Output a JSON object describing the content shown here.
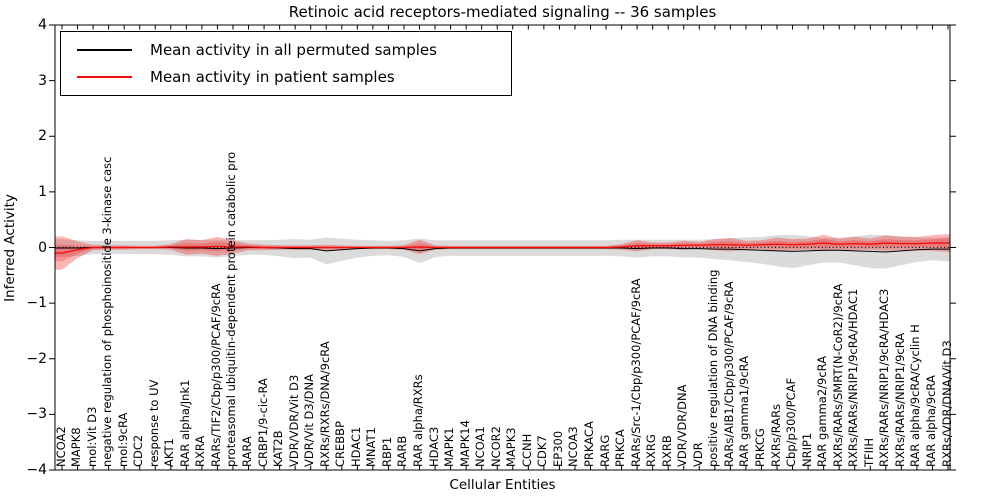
{
  "title": "Retinoic acid receptors-mediated signaling -- 36 samples",
  "axes": {
    "ylabel": "Inferred Activity",
    "xlabel": "Cellular Entities",
    "ytick_labels": [
      "4",
      "3",
      "2",
      "1",
      "0",
      "−1",
      "−2",
      "−3",
      "−4"
    ],
    "ytick_values": [
      4,
      3,
      2,
      1,
      0,
      -1,
      -2,
      -3,
      -4
    ],
    "ylim": [
      -4,
      4
    ]
  },
  "legend": {
    "items": [
      {
        "label": "Mean activity in all permuted samples",
        "color": "#000000"
      },
      {
        "label": "Mean activity in patient samples",
        "color": "#f50d0d"
      }
    ]
  },
  "colors": {
    "spine": "#000000",
    "permuted_line": "#000000",
    "patient_line": "#f50d0d",
    "permuted_band": "#999999",
    "patient_band": "#f50d0d",
    "zero_line": "#000000"
  },
  "chart_data": {
    "type": "line",
    "title": "Retinoic acid receptors-mediated signaling -- 36 samples",
    "xlabel": "Cellular Entities",
    "ylabel": "Inferred Activity",
    "ylim": [
      -4,
      4
    ],
    "grid": false,
    "legend_position": "upper left",
    "zero_reference_line": true,
    "categories": [
      "NCOA2",
      "MAPK8",
      "mol:Vit D3",
      "negative regulation of phosphoinositide 3-kinase casc",
      "mol:9cRA",
      "CDC2",
      "response to UV",
      "AKT1",
      "RAR alpha/Jnk1",
      "RXRA",
      "RARs/TIF2/Cbp/p300/PCAF/9cRA",
      "proteasomal ubiquitin-dependent protein catabolic pro",
      "RARA",
      "CRBP1/9-cic-RA",
      "KAT2B",
      "VDR/VDR/Vit D3",
      "VDR/Vit D3/DNA",
      "RXRs/RXRs/DNA/9cRA",
      "CREBBP",
      "HDAC1",
      "MNAT1",
      "RBP1",
      "RARB",
      "RAR alpha/RXRs",
      "HDAC3",
      "MAPK1",
      "MAPK14",
      "NCOA1",
      "NCOR2",
      "MAPK3",
      "CCNH",
      "CDK7",
      "EP300",
      "NCOA3",
      "PRKACA",
      "RARG",
      "PRKCA",
      "RARs/Src-1/Cbp/p300/PCAF/9cRA",
      "RXRG",
      "RXRB",
      "VDR/VDR/DNA",
      "VDR",
      "positive regulation of DNA binding",
      "RARs/AIB1/Cbp/p300/PCAF/9cRA",
      "RAR gamma1/9cRA",
      "PRKCG",
      "RXRs/RARs",
      "Cbp/p300/PCAF",
      "NRIP1",
      "RAR gamma2/9cRA",
      "RXRs/RARs/SMRT(N-CoR2)/9cRA",
      "RXRs/RARs/NRIP1/9cRA/HDAC1",
      "TFIIH",
      "RXRs/RARs/NRIP1/9cRA/HDAC3",
      "RXRs/RARs/NRIP1/9cRA",
      "RAR alpha/9cRA/Cyclin H",
      "RAR alpha/9cRA",
      "RXRs/VDR/DNA/Vit D3"
    ],
    "series": [
      {
        "name": "Mean activity in all permuted samples",
        "values": [
          -0.01,
          -0.01,
          0,
          0,
          0,
          0,
          0,
          0,
          -0.01,
          -0.01,
          -0.02,
          -0.01,
          0,
          0,
          -0.01,
          -0.02,
          -0.02,
          -0.06,
          -0.04,
          -0.02,
          -0.01,
          -0.01,
          -0.02,
          -0.06,
          -0.02,
          -0.01,
          -0.01,
          -0.01,
          -0.01,
          -0.01,
          -0.01,
          -0.01,
          -0.01,
          -0.01,
          -0.01,
          -0.01,
          -0.01,
          -0.02,
          -0.01,
          -0.01,
          -0.02,
          -0.02,
          -0.03,
          -0.03,
          -0.04,
          -0.05,
          -0.06,
          -0.07,
          -0.06,
          -0.05,
          -0.05,
          -0.06,
          -0.07,
          -0.08,
          -0.06,
          -0.04,
          -0.03,
          -0.03
        ],
        "band_std": [
          0.16,
          0.14,
          0.12,
          0.12,
          0.12,
          0.12,
          0.12,
          0.13,
          0.15,
          0.15,
          0.16,
          0.14,
          0.13,
          0.13,
          0.15,
          0.17,
          0.16,
          0.24,
          0.2,
          0.16,
          0.14,
          0.13,
          0.15,
          0.22,
          0.15,
          0.14,
          0.14,
          0.14,
          0.14,
          0.14,
          0.14,
          0.14,
          0.14,
          0.14,
          0.14,
          0.14,
          0.15,
          0.16,
          0.15,
          0.15,
          0.16,
          0.16,
          0.18,
          0.2,
          0.22,
          0.24,
          0.28,
          0.3,
          0.26,
          0.22,
          0.22,
          0.26,
          0.3,
          0.3,
          0.26,
          0.22,
          0.2,
          0.22
        ]
      },
      {
        "name": "Mean activity in patient samples",
        "values": [
          -0.1,
          -0.04,
          0,
          0,
          0,
          0,
          0,
          0.01,
          0.01,
          0.01,
          0.02,
          0.01,
          0.01,
          0,
          0,
          0,
          0,
          0,
          0,
          0,
          0,
          0,
          0,
          0.01,
          0,
          0,
          0,
          0,
          0,
          0,
          0,
          0,
          0,
          0,
          0,
          0,
          0.01,
          0.03,
          0.03,
          0.03,
          0.04,
          0.04,
          0.05,
          0.05,
          0.04,
          0.05,
          0.06,
          0.05,
          0.06,
          0.08,
          0.06,
          0.07,
          0.06,
          0.08,
          0.07,
          0.07,
          0.08,
          0.08
        ],
        "band_std": [
          0.3,
          0.15,
          0.05,
          0.04,
          0.04,
          0.03,
          0.03,
          0.05,
          0.14,
          0.12,
          0.17,
          0.12,
          0.06,
          0.05,
          0.04,
          0.04,
          0.04,
          0.05,
          0.04,
          0.03,
          0.03,
          0.03,
          0.04,
          0.13,
          0.04,
          0.03,
          0.03,
          0.03,
          0.03,
          0.03,
          0.03,
          0.03,
          0.03,
          0.03,
          0.03,
          0.03,
          0.05,
          0.1,
          0.06,
          0.06,
          0.08,
          0.06,
          0.1,
          0.12,
          0.08,
          0.08,
          0.12,
          0.1,
          0.1,
          0.15,
          0.1,
          0.12,
          0.1,
          0.14,
          0.12,
          0.12,
          0.14,
          0.16
        ]
      }
    ]
  }
}
